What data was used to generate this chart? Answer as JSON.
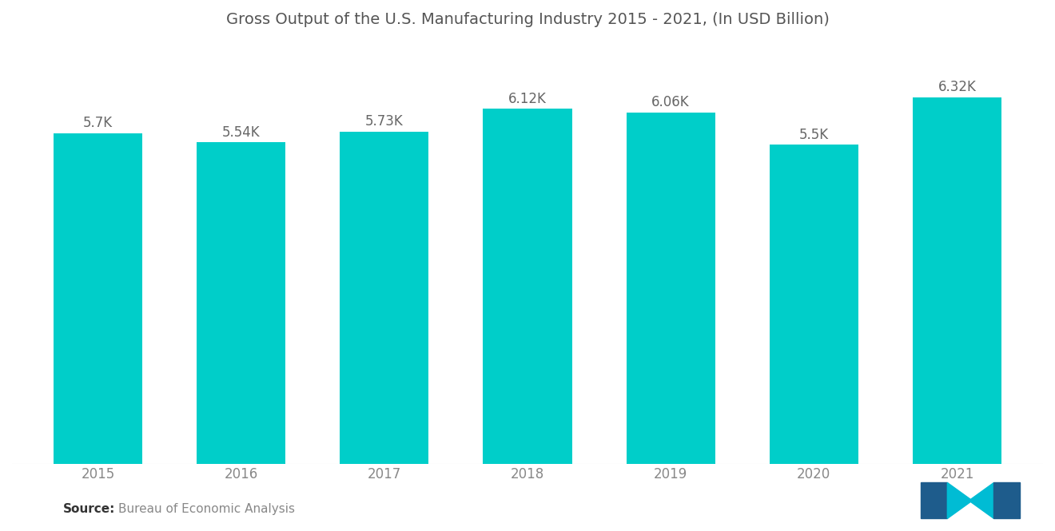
{
  "title": "Gross Output of the U.S. Manufacturing Industry 2015 - 2021, (In USD Billion)",
  "categories": [
    "2015",
    "2016",
    "2017",
    "2018",
    "2019",
    "2020",
    "2021"
  ],
  "values": [
    5700,
    5540,
    5730,
    6120,
    6060,
    5500,
    6320
  ],
  "labels": [
    "5.7K",
    "5.54K",
    "5.73K",
    "6.12K",
    "6.06K",
    "5.5K",
    "6.32K"
  ],
  "bar_color": "#00CEC9",
  "background_color": "#ffffff",
  "title_color": "#555555",
  "label_color": "#666666",
  "tick_color": "#888888",
  "source_bold": "Source:",
  "source_text": "Bureau of Economic Analysis",
  "ylim_min": 0,
  "ylim_max": 7200,
  "title_fontsize": 14,
  "label_fontsize": 12,
  "tick_fontsize": 12,
  "source_fontsize": 11,
  "bar_width": 0.62
}
